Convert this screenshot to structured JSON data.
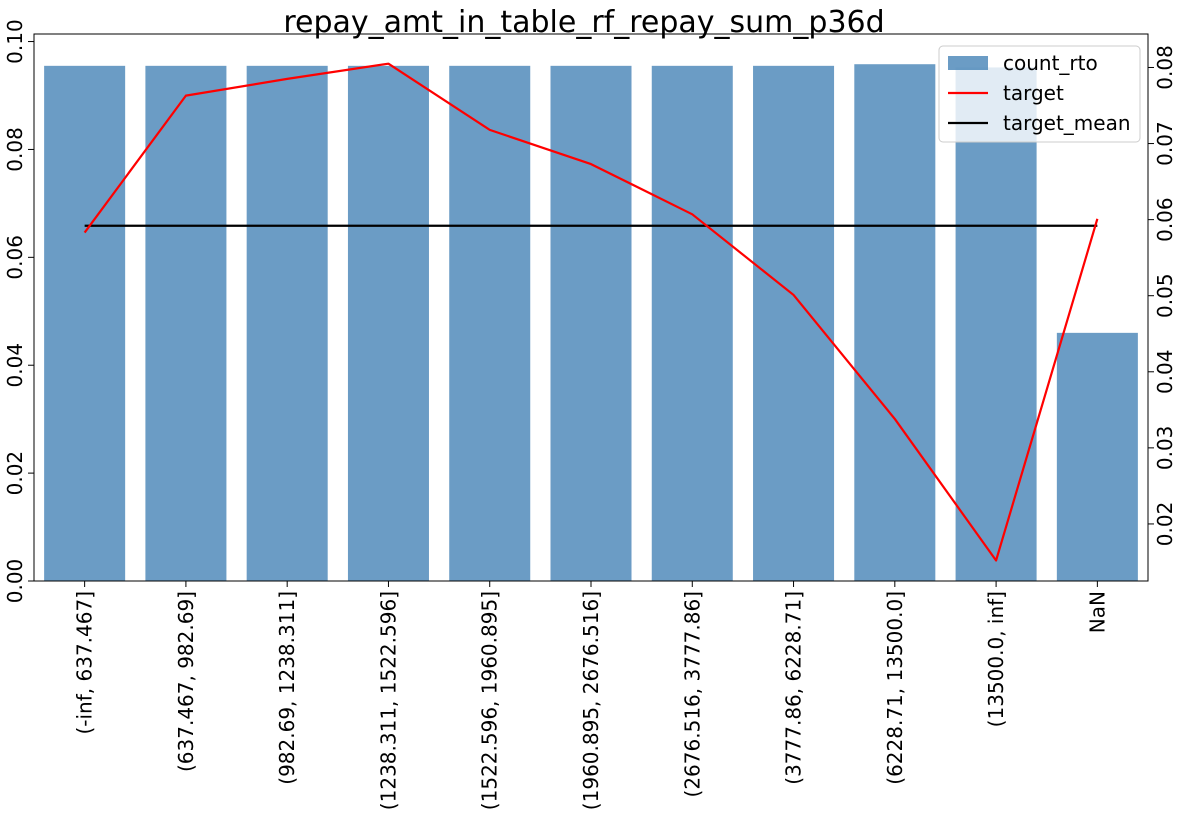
{
  "chart_data": {
    "type": "bar",
    "title": "repay_amt_in_table_rf_repay_sum_p36d",
    "categories": [
      "(-inf, 637.467]",
      "(637.467, 982.69]",
      "(982.69, 1238.311]",
      "(1238.311, 1522.596]",
      "(1522.596, 1960.895]",
      "(1960.895, 2676.516]",
      "(2676.516, 3777.86]",
      "(3777.86, 6228.71]",
      "(6228.71, 13500.0]",
      "(13500.0, inf]",
      "NaN"
    ],
    "series": [
      {
        "name": "count_rto",
        "type": "bar",
        "axis": "left",
        "color": "#4a86b8",
        "values": [
          0.0955,
          0.0955,
          0.0955,
          0.0955,
          0.0955,
          0.0955,
          0.0955,
          0.0955,
          0.0958,
          0.0952,
          0.046
        ]
      },
      {
        "name": "target",
        "type": "line",
        "axis": "right",
        "color": "#ff0000",
        "values": [
          0.0583,
          0.0763,
          0.0785,
          0.0805,
          0.0718,
          0.0673,
          0.0607,
          0.0501,
          0.0338,
          0.0152,
          0.0601
        ]
      },
      {
        "name": "target_mean",
        "type": "line",
        "axis": "right",
        "color": "#000000",
        "values": [
          0.0592,
          0.0592,
          0.0592,
          0.0592,
          0.0592,
          0.0592,
          0.0592,
          0.0592,
          0.0592,
          0.0592,
          0.0592
        ]
      }
    ],
    "left_axis": {
      "ylim": [
        0,
        0.1014
      ],
      "ticks": [
        0.0,
        0.02,
        0.04,
        0.06,
        0.08,
        0.1
      ],
      "tick_labels": [
        "0.00",
        "0.02",
        "0.04",
        "0.06",
        "0.08",
        "0.10"
      ]
    },
    "right_axis": {
      "ylim": [
        0.0125,
        0.0844
      ],
      "ticks": [
        0.02,
        0.03,
        0.04,
        0.05,
        0.06,
        0.07,
        0.08
      ],
      "tick_labels": [
        "0.02",
        "0.03",
        "0.04",
        "0.05",
        "0.06",
        "0.07",
        "0.08"
      ]
    },
    "grid": false,
    "legend_position": "top-right"
  }
}
